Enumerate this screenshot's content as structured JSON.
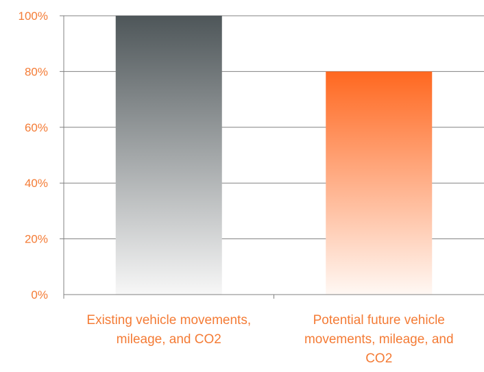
{
  "chart_data": {
    "type": "bar",
    "categories": [
      [
        "Existing vehicle movements,",
        "mileage, and CO2"
      ],
      [
        "Potential future vehicle",
        "movements, mileage, and",
        "CO2"
      ]
    ],
    "values": [
      100,
      80
    ],
    "yticks": [
      "0%",
      "20%",
      "40%",
      "60%",
      "80%",
      "100%"
    ],
    "ylim": [
      0,
      100
    ],
    "grid": true,
    "colors": {
      "label_text": "#f47b35",
      "grid": "#808080",
      "axis": "#808080",
      "bar1_top": "#4e5659",
      "bar1_bottom": "#f7f7f7",
      "bar2_top": "#ff6820",
      "bar2_bottom": "#fff8f4"
    }
  }
}
